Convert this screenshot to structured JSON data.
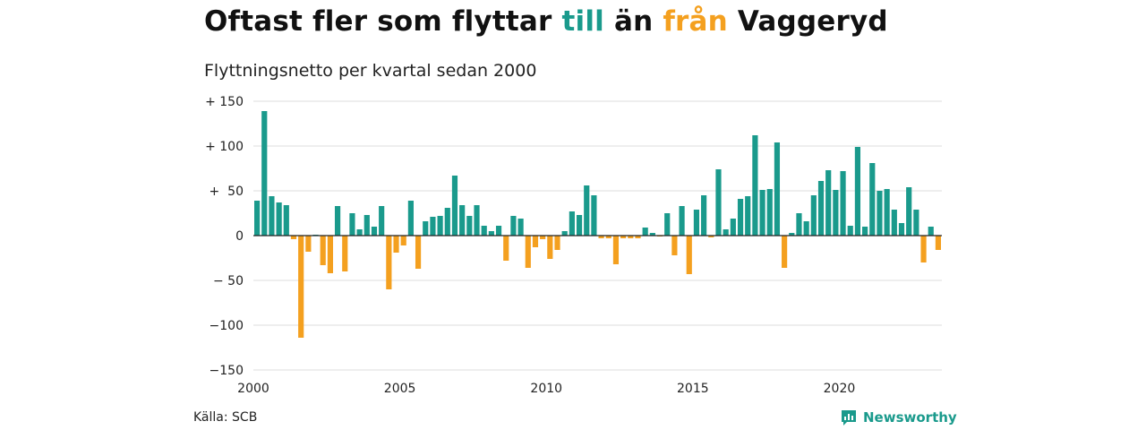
{
  "title": {
    "part1": "Oftast fler som flyttar ",
    "in_word": "till",
    "middle": " än ",
    "out_word": "från",
    "part2": " Vaggeryd"
  },
  "subtitle": "Flyttningsnetto per kvartal sedan 2000",
  "source": "Källa: SCB",
  "brand": "Newsworthy",
  "colors": {
    "positive": "#1a9a8c",
    "negative": "#f4a01f",
    "grid": "#dddddd",
    "zero": "#222222"
  },
  "chart_data": {
    "type": "bar",
    "title": "Oftast fler som flyttar till än från Vaggeryd",
    "subtitle": "Flyttningsnetto per kvartal sedan 2000",
    "ylim": [
      -150,
      150
    ],
    "yticks": [
      150,
      100,
      50,
      0,
      -50,
      -100,
      -150
    ],
    "ytick_labels": [
      "+ 150",
      "+ 100",
      "+  50",
      "0",
      "− 50",
      "−100",
      "−150"
    ],
    "xticks": [
      "2000",
      "2005",
      "2010",
      "2015",
      "2020"
    ],
    "x_start": "2000 Q1",
    "grid": true,
    "values": [
      39,
      139,
      44,
      37,
      34,
      -4,
      -114,
      -18,
      1,
      -33,
      -42,
      33,
      -40,
      25,
      7,
      23,
      10,
      33,
      -60,
      -19,
      -11,
      39,
      -37,
      16,
      21,
      22,
      31,
      67,
      34,
      22,
      34,
      11,
      5,
      11,
      -28,
      22,
      19,
      -36,
      -13,
      -4,
      -26,
      -16,
      5,
      27,
      23,
      56,
      45,
      -3,
      -3,
      -32,
      -3,
      -3,
      -3,
      9,
      3,
      -1,
      25,
      -22,
      33,
      -43,
      29,
      45,
      -2,
      74,
      7,
      19,
      41,
      44,
      112,
      51,
      52,
      104,
      -36,
      3,
      25,
      16,
      45,
      61,
      73,
      51,
      72,
      11,
      99,
      10,
      81,
      50,
      52,
      29,
      14,
      54,
      29,
      -30,
      10,
      -16
    ]
  }
}
